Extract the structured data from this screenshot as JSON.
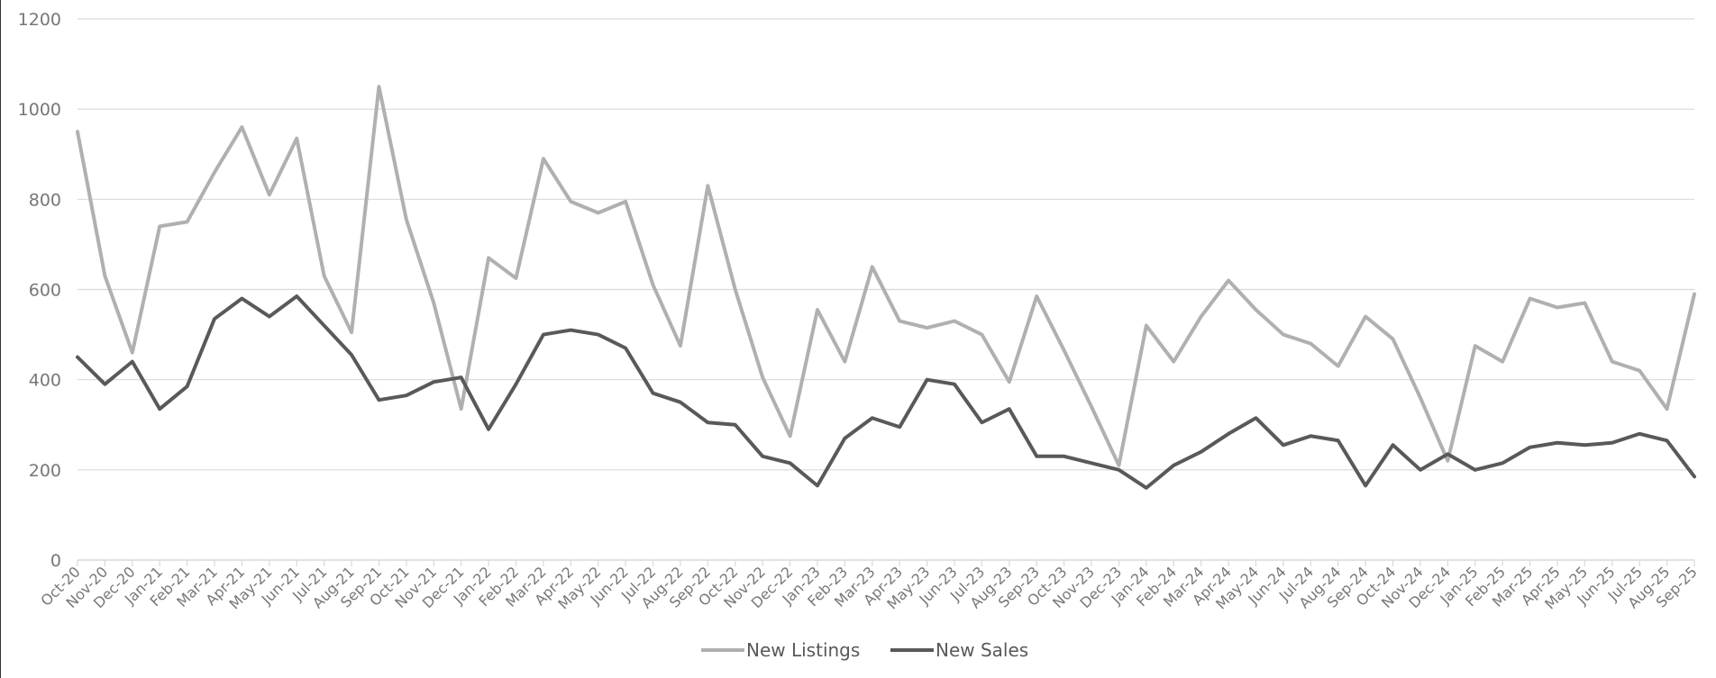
{
  "chart_data": {
    "type": "line",
    "title": "",
    "xlabel": "",
    "ylabel": "",
    "ylim": [
      0,
      1200
    ],
    "yticks": [
      0,
      200,
      400,
      600,
      800,
      1000,
      1200
    ],
    "grid": "horizontal",
    "legend_position": "bottom-center",
    "categories": [
      "Oct-20",
      "Nov-20",
      "Dec-20",
      "Jan-21",
      "Feb-21",
      "Mar-21",
      "Apr-21",
      "May-21",
      "Jun-21",
      "Jul-21",
      "Aug-21",
      "Sep-21",
      "Oct-21",
      "Nov-21",
      "Dec-21",
      "Jan-22",
      "Feb-22",
      "Mar-22",
      "Apr-22",
      "May-22",
      "Jun-22",
      "Jul-22",
      "Aug-22",
      "Sep-22",
      "Oct-22",
      "Nov-22",
      "Dec-22",
      "Jan-23",
      "Feb-23",
      "Mar-23",
      "Apr-23",
      "May-23",
      "Jun-23",
      "Jul-23",
      "Aug-23",
      "Sep-23",
      "Oct-23",
      "Nov-23",
      "Dec-23",
      "Jan-24",
      "Feb-24",
      "Mar-24",
      "Apr-24",
      "May-24",
      "Jun-24",
      "Jul-24",
      "Aug-24",
      "Sep-24",
      "Oct-24",
      "Nov-24",
      "Dec-24",
      "Jan-25",
      "Feb-25",
      "Mar-25",
      "Apr-25",
      "May-25",
      "Jun-25",
      "Jul-25",
      "Aug-25",
      "Sep-25"
    ],
    "series": [
      {
        "name": "New Listings",
        "color": "#b0b0b0",
        "values": [
          950,
          630,
          460,
          740,
          750,
          860,
          960,
          810,
          935,
          630,
          505,
          1050,
          755,
          570,
          335,
          670,
          625,
          890,
          795,
          770,
          795,
          610,
          475,
          830,
          600,
          405,
          275,
          555,
          440,
          650,
          530,
          515,
          530,
          500,
          395,
          585,
          465,
          340,
          210,
          520,
          440,
          540,
          620,
          555,
          500,
          480,
          430,
          540,
          490,
          360,
          220,
          475,
          440,
          580,
          560,
          570,
          440,
          420,
          335,
          590
        ]
      },
      {
        "name": "New Sales",
        "color": "#595959",
        "values": [
          450,
          390,
          440,
          335,
          385,
          535,
          580,
          540,
          585,
          520,
          455,
          355,
          365,
          395,
          405,
          290,
          390,
          500,
          510,
          500,
          470,
          370,
          350,
          305,
          300,
          230,
          215,
          165,
          270,
          315,
          295,
          400,
          390,
          305,
          335,
          230,
          230,
          215,
          200,
          160,
          210,
          240,
          280,
          315,
          255,
          275,
          265,
          165,
          255,
          200,
          235,
          200,
          215,
          250,
          260,
          255,
          260,
          280,
          265,
          185
        ]
      }
    ]
  }
}
